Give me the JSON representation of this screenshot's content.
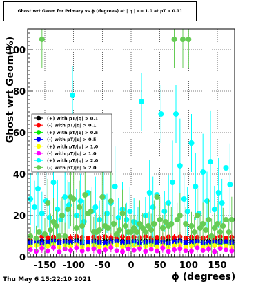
{
  "title": "Ghost wrt Geom for Primary vs ϕ (degrees) at | η | <= 1.0 at pT > 0.11",
  "footer": "Thu May  6 15:22:10 2021",
  "chart_data": {
    "type": "scatter",
    "xlabel": "ϕ (degrees)",
    "ylabel": "Ghost wrt Geom(%)",
    "xlim": [
      -180,
      180
    ],
    "ylim": [
      0,
      110
    ],
    "xticks": [
      -150,
      -100,
      -50,
      0,
      50,
      100,
      150
    ],
    "yticks": [
      0,
      20,
      40,
      60,
      80,
      100
    ],
    "grid": true,
    "legend_position": "middle-left",
    "series": [
      {
        "name": "(+) with pT/|q| > 0.1",
        "color": "#000000",
        "marker": "circle",
        "x": [
          -175,
          -165,
          -155,
          -145,
          -135,
          -125,
          -115,
          -105,
          -95,
          -85,
          -75,
          -65,
          -55,
          -45,
          -35,
          -25,
          -15,
          -5,
          5,
          15,
          25,
          35,
          45,
          55,
          65,
          75,
          85,
          95,
          105,
          115,
          125,
          135,
          145,
          155,
          165,
          175
        ],
        "y": [
          8.0,
          8.3,
          7.9,
          8.1,
          8.4,
          7.8,
          8.2,
          8.0,
          8.3,
          7.9,
          8.1,
          8.2,
          7.8,
          8.0,
          8.4,
          8.1,
          7.9,
          8.2,
          8.0,
          8.3,
          7.8,
          8.1,
          8.2,
          7.9,
          8.0,
          8.3,
          8.1,
          7.9,
          8.2,
          8.0,
          8.4,
          7.8,
          8.1,
          8.0,
          8.2,
          7.9
        ]
      },
      {
        "name": "(-) with pT/|q| > 0.1",
        "color": "#ff0000",
        "marker": "circle",
        "x": [
          -175,
          -165,
          -155,
          -145,
          -135,
          -125,
          -115,
          -105,
          -95,
          -85,
          -75,
          -65,
          -55,
          -45,
          -35,
          -25,
          -15,
          -5,
          5,
          15,
          25,
          35,
          45,
          55,
          65,
          75,
          85,
          95,
          105,
          115,
          125,
          135,
          145,
          155,
          165,
          175
        ],
        "y": [
          9.5,
          9.2,
          9.8,
          9.4,
          9.6,
          9.1,
          9.7,
          9.3,
          9.9,
          9.5,
          9.2,
          9.6,
          9.4,
          9.8,
          9.3,
          9.5,
          9.7,
          9.2,
          9.6,
          9.4,
          9.9,
          9.3,
          9.5,
          9.1,
          9.7,
          9.4,
          9.8,
          9.2,
          9.6,
          9.5,
          9.3,
          9.7,
          9.4,
          9.9,
          9.2,
          9.6
        ]
      },
      {
        "name": "(+) with pT/|q| > 0.5",
        "color": "#00ee00",
        "marker": "circle",
        "x": [
          -175,
          -165,
          -155,
          -145,
          -135,
          -125,
          -115,
          -105,
          -95,
          -85,
          -75,
          -65,
          -55,
          -45,
          -35,
          -25,
          -15,
          -5,
          5,
          15,
          25,
          35,
          45,
          55,
          65,
          75,
          85,
          95,
          105,
          115,
          125,
          135,
          145,
          155,
          165,
          175
        ],
        "y": [
          6.2,
          6.8,
          5.9,
          6.5,
          7.0,
          6.1,
          6.6,
          6.3,
          6.9,
          6.0,
          6.4,
          6.7,
          6.2,
          5.8,
          6.6,
          6.9,
          6.1,
          6.4,
          6.8,
          6.0,
          6.3,
          6.7,
          6.2,
          6.5,
          5.9,
          6.6,
          6.9,
          6.1,
          6.4,
          6.8,
          6.0,
          6.3,
          6.7,
          6.2,
          6.5,
          6.0
        ]
      },
      {
        "name": "(-) with pT/|q| > 0.5",
        "color": "#0000ff",
        "marker": "circle",
        "x": [
          -175,
          -165,
          -155,
          -145,
          -135,
          -125,
          -115,
          -105,
          -95,
          -85,
          -75,
          -65,
          -55,
          -45,
          -35,
          -25,
          -15,
          -5,
          5,
          15,
          25,
          35,
          45,
          55,
          65,
          75,
          85,
          95,
          105,
          115,
          125,
          135,
          145,
          155,
          165,
          175
        ],
        "y": [
          7.0,
          7.4,
          6.8,
          7.2,
          7.6,
          6.9,
          7.3,
          7.1,
          7.5,
          6.7,
          7.2,
          7.4,
          7.0,
          6.8,
          7.3,
          7.6,
          6.9,
          7.1,
          7.5,
          6.8,
          7.2,
          7.4,
          7.0,
          7.3,
          6.7,
          7.2,
          7.5,
          6.9,
          7.1,
          7.4,
          6.8,
          7.0,
          7.3,
          7.1,
          7.4,
          6.9
        ]
      },
      {
        "name": "(+) with pT/|q| > 1.0",
        "color": "#ffff00",
        "marker": "circle",
        "x": [
          -175,
          -165,
          -155,
          -145,
          -135,
          -125,
          -115,
          -105,
          -95,
          -85,
          -75,
          -65,
          -55,
          -45,
          -35,
          -25,
          -15,
          -5,
          5,
          15,
          25,
          35,
          45,
          55,
          65,
          75,
          85,
          95,
          105,
          115,
          125,
          135,
          145,
          155,
          165,
          175
        ],
        "y": [
          5.0,
          5.6,
          4.7,
          5.3,
          5.8,
          4.9,
          5.4,
          5.1,
          5.7,
          4.8,
          5.2,
          5.5,
          5.0,
          4.6,
          5.4,
          5.7,
          4.9,
          5.2,
          5.6,
          4.8,
          5.1,
          5.5,
          5.0,
          5.3,
          4.7,
          5.4,
          5.7,
          4.9,
          5.2,
          5.6,
          4.8,
          5.1,
          5.5,
          5.0,
          5.3,
          4.8
        ]
      },
      {
        "name": "(-) with pT/|q| > 1.0",
        "color": "#ff00ff",
        "marker": "circle",
        "x": [
          -175,
          -165,
          -155,
          -145,
          -135,
          -125,
          -115,
          -105,
          -95,
          -85,
          -75,
          -65,
          -55,
          -45,
          -35,
          -25,
          -15,
          -5,
          5,
          15,
          25,
          35,
          45,
          55,
          65,
          75,
          85,
          95,
          105,
          115,
          125,
          135,
          145,
          155,
          165,
          175
        ],
        "y": [
          3.5,
          2.8,
          4.2,
          3.0,
          4.6,
          2.5,
          3.8,
          3.2,
          4.4,
          2.9,
          3.6,
          4.0,
          2.7,
          3.4,
          4.5,
          3.1,
          2.6,
          3.9,
          3.3,
          4.1,
          2.8,
          3.7,
          3.0,
          4.3,
          2.7,
          3.5,
          4.0,
          3.1,
          2.9,
          4.4,
          3.2,
          3.8,
          2.6,
          4.1,
          3.4,
          3.0
        ]
      },
      {
        "name": "(+) with pT/|q| > 2.0",
        "color": "#00ffff",
        "marker": "circle",
        "x": [
          -175,
          -168,
          -162,
          -155,
          -148,
          -142,
          -135,
          -128,
          -122,
          -115,
          -108,
          -102,
          -95,
          -88,
          -82,
          -75,
          -68,
          -62,
          -55,
          -48,
          -42,
          -35,
          -28,
          -22,
          -15,
          -8,
          -2,
          5,
          12,
          18,
          25,
          32,
          38,
          45,
          52,
          58,
          65,
          72,
          78,
          85,
          92,
          98,
          105,
          112,
          118,
          125,
          132,
          138,
          145,
          152,
          158,
          165,
          172
        ],
        "y": [
          28,
          24,
          33,
          21,
          27,
          19,
          36,
          23,
          18,
          29,
          25,
          78,
          20,
          27,
          17,
          31,
          22,
          24,
          18,
          29,
          21,
          26,
          34,
          19,
          23,
          18,
          22,
          17,
          16,
          75,
          20,
          31,
          24,
          30,
          69,
          22,
          26,
          36,
          69,
          44,
          28,
          22,
          55,
          34,
          21,
          41,
          27,
          46,
          23,
          31,
          26,
          43,
          35
        ]
      },
      {
        "name": "(-) with pT/|q| > 2.0",
        "color": "#66cc55",
        "marker": "circle",
        "x": [
          -175,
          -165,
          -160,
          -155,
          -150,
          -145,
          -140,
          -135,
          -130,
          -125,
          -120,
          -115,
          -110,
          -105,
          -100,
          -95,
          -90,
          -85,
          -80,
          -75,
          -70,
          -65,
          -60,
          -55,
          -50,
          -45,
          -40,
          -35,
          -30,
          -25,
          -20,
          -15,
          -10,
          -5,
          0,
          5,
          10,
          15,
          20,
          25,
          30,
          35,
          40,
          45,
          50,
          55,
          60,
          65,
          70,
          75,
          80,
          85,
          90,
          95,
          100,
          105,
          110,
          115,
          120,
          125,
          130,
          135,
          140,
          145,
          150,
          155,
          160,
          165,
          170,
          175
        ],
        "y": [
          10,
          9,
          12,
          105,
          11,
          26,
          13,
          17,
          15,
          10,
          20,
          10,
          23,
          29,
          28,
          14,
          24,
          15,
          30,
          21,
          22,
          12,
          12,
          13,
          29,
          15,
          14,
          27,
          16,
          11,
          13,
          21,
          15,
          12,
          12,
          14,
          12,
          16,
          14,
          12,
          15,
          13,
          16,
          29,
          18,
          14,
          17,
          15,
          16,
          105,
          18,
          20,
          105,
          16,
          105,
          15,
          12,
          20,
          14,
          16,
          13,
          18,
          10,
          14,
          16,
          12,
          15,
          18,
          12,
          18
        ]
      }
    ]
  }
}
